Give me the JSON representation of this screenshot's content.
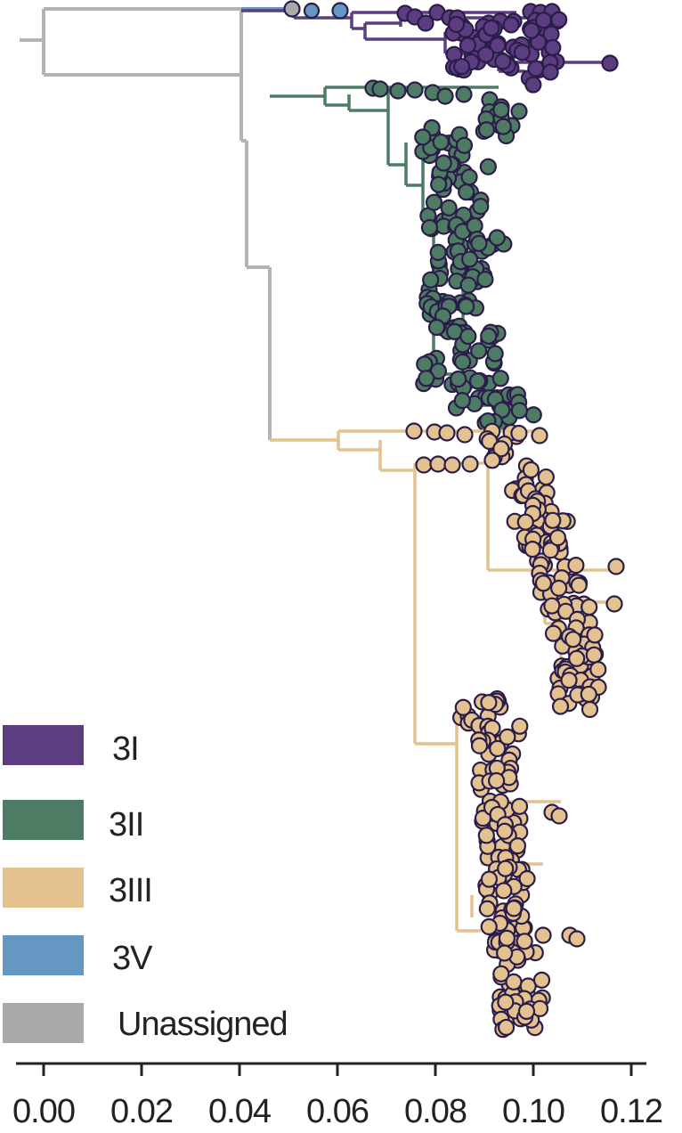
{
  "chart_data": {
    "type": "phylogenetic-tree",
    "xlim": [
      0.0,
      0.12
    ],
    "ticks": [
      0.0,
      0.02,
      0.04,
      0.06,
      0.08,
      0.1,
      0.12
    ],
    "tick_labels": [
      "0.00",
      "0.02",
      "0.04",
      "0.06",
      "0.08",
      "0.10",
      "0.12"
    ],
    "legend": [
      {
        "label": "3I",
        "color": "#5c3d80"
      },
      {
        "label": "3II",
        "color": "#4e7b63"
      },
      {
        "label": "3III",
        "color": "#e3c28f"
      },
      {
        "label": "3V",
        "color": "#6497c2"
      },
      {
        "label": "Unassigned",
        "color": "#a9a9a9"
      }
    ],
    "clades": {
      "3I": {
        "color": "#5c3d80",
        "tip_distance_range": [
          0.05,
          0.116
        ]
      },
      "3II": {
        "color": "#4e7b63",
        "tip_distance_range": [
          0.068,
          0.097
        ]
      },
      "3III": {
        "color": "#e3c28f",
        "tip_distance_range": [
          0.075,
          0.117
        ]
      },
      "3V": {
        "color": "#6497c2",
        "tip_distance_range": [
          0.054,
          0.061
        ]
      },
      "Unassigned": {
        "color": "#a9a9a9",
        "tip_distance_range": [
          0.051,
          0.051
        ]
      }
    },
    "tip_outline_color": "#2b1d4a"
  }
}
